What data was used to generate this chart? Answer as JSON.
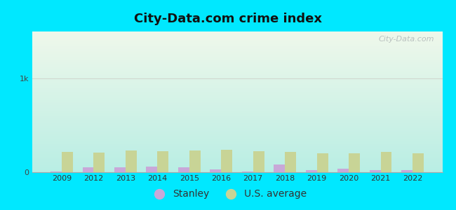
{
  "title": "City-Data.com crime index",
  "title_fontsize": 13,
  "years": [
    2009,
    2012,
    2013,
    2014,
    2015,
    2016,
    2017,
    2018,
    2019,
    2020,
    2021,
    2022
  ],
  "stanley_values": [
    5,
    55,
    50,
    60,
    55,
    30,
    10,
    80,
    20,
    40,
    20,
    20
  ],
  "us_avg_values": [
    220,
    210,
    235,
    225,
    230,
    240,
    225,
    215,
    205,
    205,
    215,
    200
  ],
  "stanley_color": "#c8a8d8",
  "us_avg_color": "#c8d496",
  "bar_width": 0.35,
  "ylim": [
    0,
    1500
  ],
  "yticks": [
    0,
    1000
  ],
  "ytick_labels": [
    "0",
    "1k"
  ],
  "bg_top_left": "#f0f8f0",
  "bg_bottom_right": "#b8f0e8",
  "grid_color": "#d0d8d0",
  "outer_color": "#00e8ff",
  "watermark_text": "City-Data.com",
  "legend_labels": [
    "Stanley",
    "U.S. average"
  ]
}
